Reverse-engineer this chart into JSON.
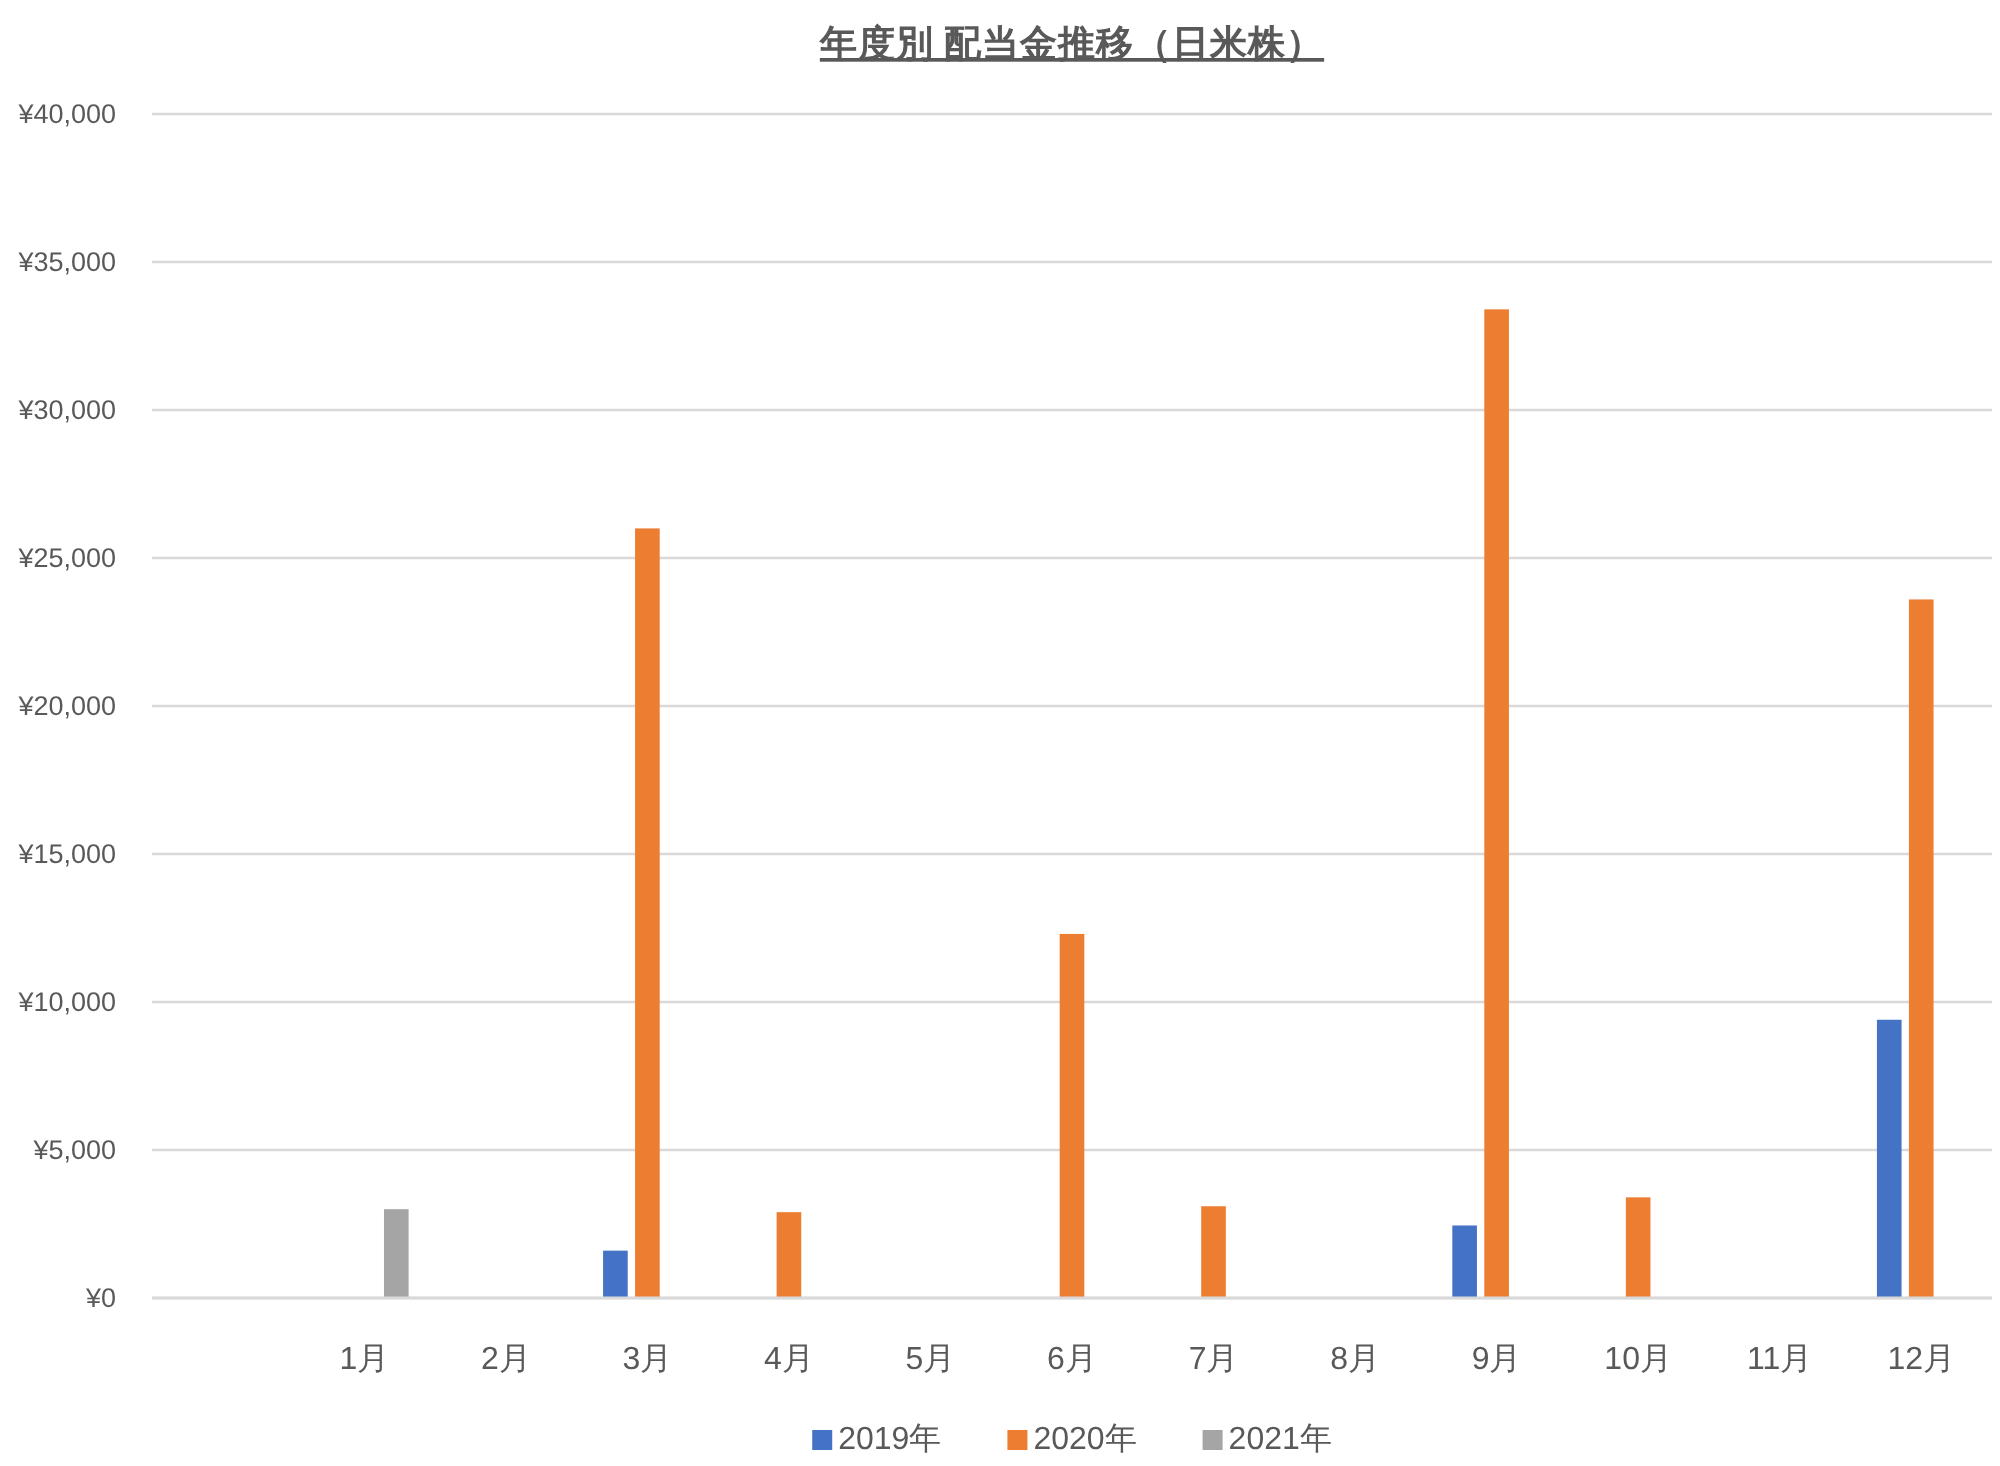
{
  "chart_data": {
    "type": "bar",
    "title": "年度別 配当金推移（日米株）",
    "categories": [
      null,
      "1月",
      "2月",
      "3月",
      "4月",
      "5月",
      "6月",
      "7月",
      "8月",
      "9月",
      "10月",
      "11月",
      "12月"
    ],
    "series": [
      {
        "name": "2019年",
        "color": "#4472c4",
        "values": [
          null,
          null,
          null,
          1600,
          null,
          null,
          null,
          null,
          null,
          2450,
          null,
          null,
          9400
        ]
      },
      {
        "name": "2020年",
        "color": "#ed7d31",
        "values": [
          null,
          null,
          null,
          26000,
          2900,
          null,
          12300,
          3100,
          null,
          33400,
          3400,
          null,
          23600
        ]
      },
      {
        "name": "2021年",
        "color": "#a5a5a5",
        "values": [
          null,
          3000,
          null,
          null,
          null,
          null,
          null,
          null,
          null,
          null,
          null,
          null,
          null
        ]
      }
    ],
    "ylim": [
      0,
      40000
    ],
    "yticks": [
      {
        "value": 0,
        "label": "¥0"
      },
      {
        "value": 5000,
        "label": "¥5,000"
      },
      {
        "value": 10000,
        "label": "¥10,000"
      },
      {
        "value": 15000,
        "label": "¥15,000"
      },
      {
        "value": 20000,
        "label": "¥20,000"
      },
      {
        "value": 25000,
        "label": "¥25,000"
      },
      {
        "value": 30000,
        "label": "¥30,000"
      },
      {
        "value": 35000,
        "label": "¥35,000"
      },
      {
        "value": 40000,
        "label": "¥40,000"
      }
    ],
    "grid": "y",
    "legend": "bottom"
  }
}
